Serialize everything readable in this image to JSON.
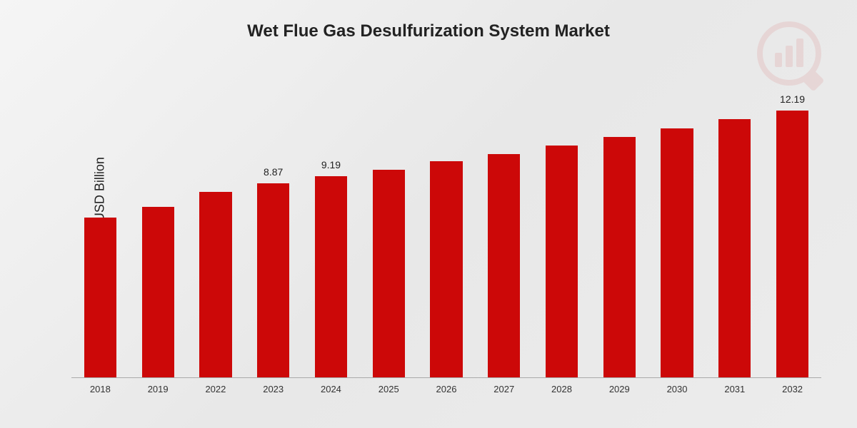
{
  "title": "Wet Flue Gas Desulfurization System Market",
  "ylabel": "Market Value in USD Billion",
  "chart": {
    "type": "bar",
    "bar_color": "#cc0808",
    "background": "linear-gradient(135deg,#f5f5f5,#e8e8e8)",
    "axis_color": "#aaaaaa",
    "title_fontsize": 24,
    "ylabel_fontsize": 18,
    "xlabel_fontsize": 13,
    "datalabel_fontsize": 14,
    "bar_width_ratio": 0.56,
    "ylim": [
      0,
      14
    ],
    "categories": [
      "2018",
      "2019",
      "2022",
      "2023",
      "2024",
      "2025",
      "2026",
      "2027",
      "2028",
      "2029",
      "2030",
      "2031",
      "2032"
    ],
    "values": [
      7.3,
      7.8,
      8.5,
      8.87,
      9.19,
      9.5,
      9.9,
      10.2,
      10.6,
      11.0,
      11.4,
      11.8,
      12.19
    ],
    "data_labels": [
      "",
      "",
      "",
      "8.87",
      "9.19",
      "",
      "",
      "",
      "",
      "",
      "",
      "",
      "12.19"
    ]
  }
}
